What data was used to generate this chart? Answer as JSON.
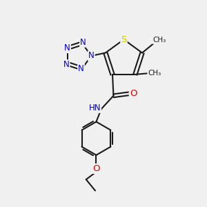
{
  "bg_color": "#f0f0f0",
  "bond_color": "#1a1a1a",
  "S_color": "#cccc00",
  "N_color": "#0000cc",
  "O_color": "#dd0000",
  "C_color": "#1a1a1a",
  "line_width": 1.5,
  "figsize": [
    3.0,
    3.0
  ],
  "dpi": 100,
  "xlim": [
    0,
    10
  ],
  "ylim": [
    0,
    10
  ]
}
